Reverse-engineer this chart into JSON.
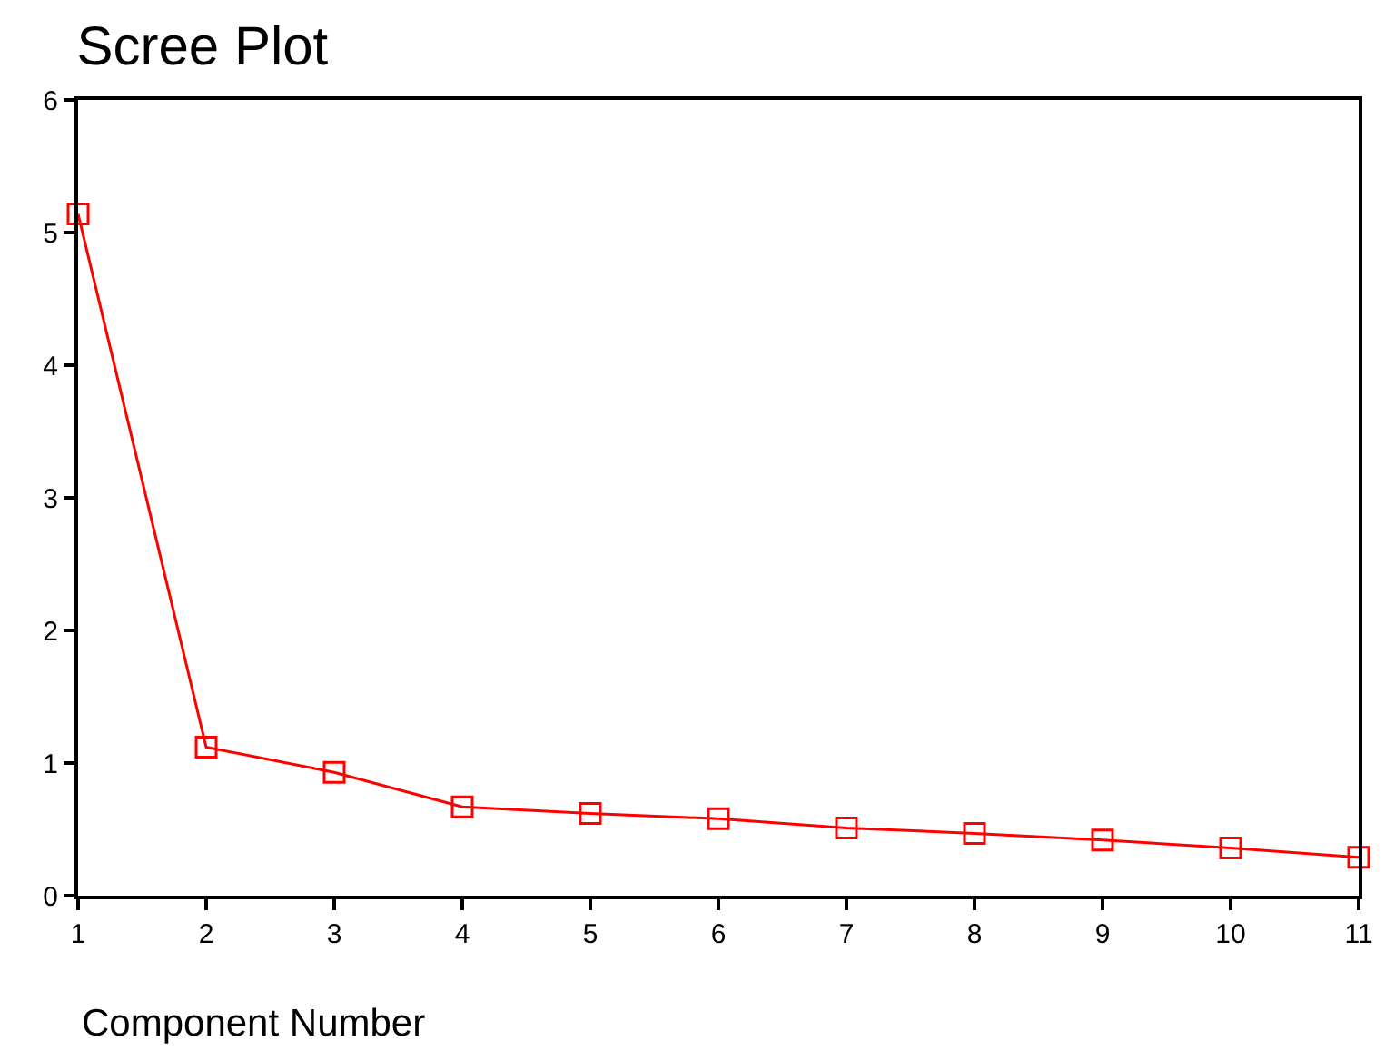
{
  "chart_data": {
    "type": "line",
    "title": "Scree Plot",
    "xlabel": "Component Number",
    "x": [
      1,
      2,
      3,
      4,
      5,
      6,
      7,
      8,
      9,
      10,
      11
    ],
    "series": [
      {
        "color": "#ff0000",
        "values": [
          5.14,
          1.12,
          0.93,
          0.67,
          0.62,
          0.58,
          0.51,
          0.47,
          0.42,
          0.36,
          0.29
        ]
      }
    ],
    "xlim": [
      1,
      11
    ],
    "xticks": [
      1,
      2,
      3,
      4,
      5,
      6,
      7,
      8,
      9,
      10,
      11
    ],
    "ylim": [
      0,
      6
    ],
    "yticks": [
      0,
      1,
      2,
      3,
      4,
      5,
      6
    ],
    "grid": false,
    "legend": false,
    "marker": "square",
    "line_style": "solid"
  }
}
